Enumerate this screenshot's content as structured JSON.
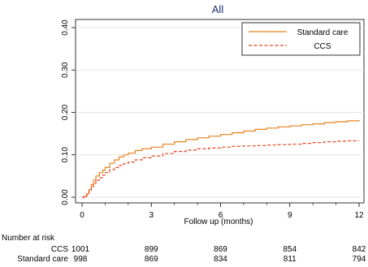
{
  "chart_data": {
    "type": "line",
    "title": "All",
    "xlabel": "Follow up (months)",
    "ylabel": "",
    "xlim": [
      0,
      12
    ],
    "ylim": [
      0,
      0.4
    ],
    "x_ticks": [
      "0",
      "3",
      "6",
      "9",
      "12"
    ],
    "y_ticks": [
      "0.00",
      "0.10",
      "0.20",
      "0.30",
      "0.40"
    ],
    "grid": true,
    "legend_position": "top-right",
    "series": [
      {
        "name": "Standard care",
        "style": "solid",
        "color": "#e8821e",
        "x": [
          0,
          0.1,
          0.2,
          0.3,
          0.4,
          0.5,
          0.6,
          0.75,
          0.9,
          1.0,
          1.2,
          1.4,
          1.6,
          1.8,
          2.0,
          2.3,
          2.6,
          3.0,
          3.5,
          4.0,
          4.5,
          5.0,
          5.5,
          6.0,
          6.5,
          7.0,
          7.5,
          8.0,
          8.5,
          9.0,
          9.5,
          10.0,
          10.5,
          11.0,
          11.5,
          12.0
        ],
        "values": [
          0.0,
          0.002,
          0.008,
          0.018,
          0.03,
          0.04,
          0.05,
          0.058,
          0.064,
          0.07,
          0.08,
          0.088,
          0.095,
          0.1,
          0.104,
          0.11,
          0.114,
          0.118,
          0.125,
          0.131,
          0.136,
          0.14,
          0.144,
          0.148,
          0.152,
          0.156,
          0.16,
          0.163,
          0.166,
          0.168,
          0.171,
          0.173,
          0.176,
          0.178,
          0.18,
          0.182
        ]
      },
      {
        "name": "CCS",
        "style": "dashed",
        "color": "#e8421e",
        "x": [
          0,
          0.1,
          0.2,
          0.3,
          0.4,
          0.5,
          0.6,
          0.75,
          0.9,
          1.0,
          1.2,
          1.4,
          1.6,
          1.8,
          2.0,
          2.3,
          2.6,
          3.0,
          3.5,
          4.0,
          4.5,
          5.0,
          5.5,
          6.0,
          6.5,
          7.0,
          7.5,
          8.0,
          8.5,
          9.0,
          9.5,
          10.0,
          10.5,
          11.0,
          11.5,
          12.0
        ],
        "values": [
          0.0,
          0.002,
          0.007,
          0.015,
          0.025,
          0.033,
          0.04,
          0.046,
          0.052,
          0.058,
          0.065,
          0.07,
          0.075,
          0.079,
          0.083,
          0.088,
          0.093,
          0.097,
          0.103,
          0.108,
          0.111,
          0.114,
          0.116,
          0.118,
          0.12,
          0.121,
          0.122,
          0.123,
          0.124,
          0.125,
          0.127,
          0.129,
          0.131,
          0.132,
          0.133,
          0.133
        ]
      }
    ]
  },
  "risk_table": {
    "heading": "Number at risk",
    "rows": [
      {
        "label": "CCS",
        "values": [
          "1001",
          "899",
          "869",
          "854",
          "842"
        ]
      },
      {
        "label": "Standard care",
        "values": [
          "998",
          "869",
          "834",
          "811",
          "794"
        ]
      }
    ]
  },
  "colors": {
    "standard_care": "#e8821e",
    "ccs": "#e8421e",
    "title": "#1a2a6c",
    "grid": "#e6e6e6"
  }
}
